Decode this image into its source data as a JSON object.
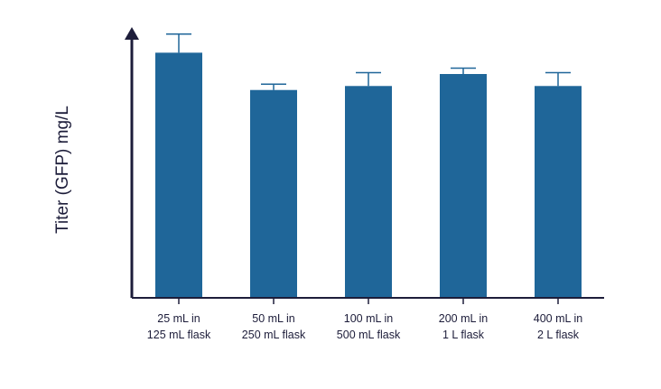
{
  "colors": {
    "bar": "#1f6699",
    "axis": "#1d1d3a",
    "background": "#ffffff"
  },
  "chart_data": {
    "type": "bar",
    "title": "",
    "xlabel": "",
    "ylabel": "Titer (GFP) mg/L",
    "ylim": [
      0,
      105
    ],
    "y_tick_labels_shown": false,
    "grid": false,
    "legend": "none",
    "categories": [
      [
        "25 mL in",
        "125 mL flask"
      ],
      [
        "50 mL in",
        "250 mL flask"
      ],
      [
        "100 mL in",
        "500 mL flask"
      ],
      [
        "200 mL in",
        "1 L flask"
      ],
      [
        "400 mL in",
        "2 L flask"
      ]
    ],
    "series": [
      {
        "values": [
          92,
          78,
          79.5,
          84,
          79.5
        ],
        "errors": [
          7,
          2.2,
          5,
          2.2,
          5
        ]
      }
    ]
  }
}
